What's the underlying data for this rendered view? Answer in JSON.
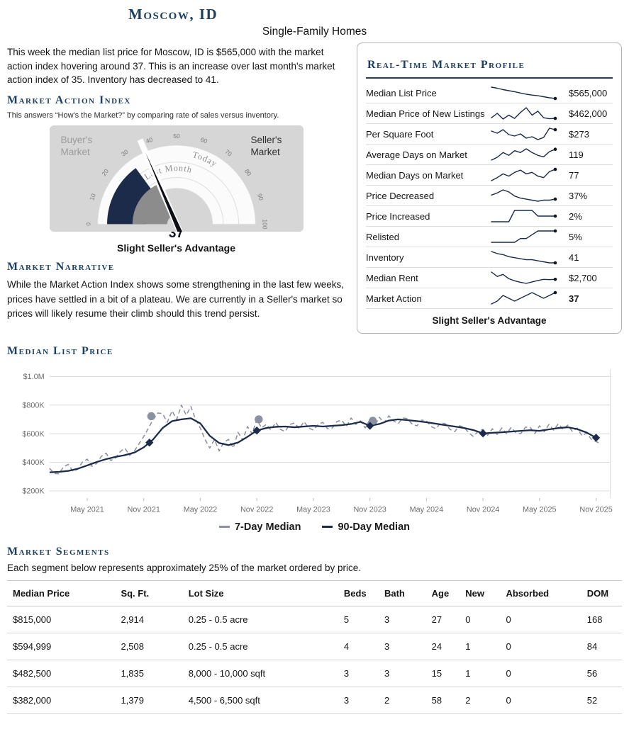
{
  "colors": {
    "navy": "#1c2b4a",
    "heading_blue": "#1d3f63",
    "gray_series": "#8b91a0"
  },
  "page": {
    "title": "Moscow, ID",
    "subtitle": "Single-Family Homes",
    "intro": "This week the median list price for Moscow, ID is $565,000 with the market action index hovering around 37. This is an increase over last month's market action index of 35. Inventory has decreased to 41."
  },
  "market_action": {
    "heading": "Market Action Index",
    "description": "This answers “How's the Market?” by comparing rate of sales versus inventory."
  },
  "market_narrative": {
    "heading": "Market Narrative",
    "text": "While the Market Action Index shows some strengthening in the last few weeks, prices have settled in a bit of a plateau. We are currently in a Seller's market so prices will likely resume their climb should this trend persist."
  },
  "profile": {
    "heading": "Real-Time Market Profile",
    "rows": [
      {
        "label": "Median List Price",
        "value": "$565,000",
        "spark": [
          648,
          640,
          630,
          622,
          615,
          605,
          596,
          590,
          585,
          578,
          570,
          565
        ]
      },
      {
        "label": "Median Price of New Listings",
        "value": "$462,000",
        "spark": [
          470,
          520,
          455,
          500,
          462,
          530,
          585,
          500,
          545,
          470,
          458,
          462
        ]
      },
      {
        "label": "Per Square Foot",
        "value": "$273",
        "spark": [
          271,
          268,
          273,
          266,
          264,
          267,
          261,
          263,
          259,
          262,
          275,
          273
        ]
      },
      {
        "label": "Average Days on Market",
        "value": "119",
        "spark": [
          96,
          102,
          112,
          106,
          116,
          112,
          120,
          112,
          106,
          103,
          114,
          119
        ]
      },
      {
        "label": "Median Days on Market",
        "value": "77",
        "spark": [
          62,
          66,
          71,
          68,
          73,
          76,
          71,
          73,
          68,
          66,
          74,
          77
        ]
      },
      {
        "label": "Price Decreased",
        "value": "37%",
        "spark": [
          41,
          43,
          46,
          44,
          40,
          38,
          37,
          36,
          35,
          36,
          36,
          37
        ]
      },
      {
        "label": "Price Increased",
        "value": "2%",
        "spark": [
          1,
          1,
          1,
          1,
          3,
          3,
          3,
          3,
          2,
          2,
          2,
          2
        ]
      },
      {
        "label": "Relisted",
        "value": "5%",
        "spark": [
          2,
          2,
          2,
          2,
          2,
          3,
          3,
          4,
          5,
          5,
          5,
          5
        ]
      },
      {
        "label": "Inventory",
        "value": "41",
        "spark": [
          52,
          50,
          49,
          47,
          46,
          45,
          44,
          44,
          43,
          42,
          41,
          41
        ]
      },
      {
        "label": "Median Rent",
        "value": "$2,700",
        "spark": [
          2950,
          2800,
          2870,
          2720,
          2650,
          2600,
          2560,
          2610,
          2660,
          2700,
          2690,
          2700
        ]
      },
      {
        "label": "Market Action",
        "value": "37",
        "value_bold": true,
        "spark": [
          33,
          34,
          36,
          35,
          34,
          35,
          36,
          37,
          36,
          35,
          36,
          37
        ]
      }
    ],
    "footer": "Slight Seller's Advantage"
  },
  "segments": {
    "heading": "Market Segments",
    "description": "Each segment below represents approximately 25% of the market ordered by price.",
    "columns": [
      "Median Price",
      "Sq. Ft.",
      "Lot Size",
      "Beds",
      "Bath",
      "Age",
      "New",
      "Absorbed",
      "DOM"
    ],
    "rows": [
      [
        "$815,000",
        "2,914",
        "0.25 - 0.5 acre",
        "5",
        "3",
        "27",
        "0",
        "0",
        "168"
      ],
      [
        "$594,999",
        "2,508",
        "0.25 - 0.5 acre",
        "4",
        "3",
        "24",
        "1",
        "0",
        "84"
      ],
      [
        "$482,500",
        "1,835",
        "8,000 - 10,000 sqft",
        "3",
        "3",
        "15",
        "1",
        "0",
        "56"
      ],
      [
        "$382,000",
        "1,379",
        "4,500 - 6,500 sqft",
        "3",
        "2",
        "58",
        "2",
        "0",
        "52"
      ]
    ]
  },
  "chart_data": [
    {
      "id": "market-action-gauge",
      "type": "gauge",
      "value": 37,
      "value_label": "37",
      "last_month_value": 35,
      "min": 0,
      "max": 100,
      "ticks": [
        0,
        10,
        20,
        30,
        40,
        50,
        60,
        70,
        80,
        90,
        100
      ],
      "buyers_label": "Buyer's Market",
      "sellers_label": "Seller's Market",
      "arc_labels": {
        "last_month": "Last Month",
        "today": "Today"
      },
      "caption": "Slight Seller's Advantage"
    },
    {
      "id": "median-list-price",
      "type": "line",
      "title": "Median List Price",
      "x_start": "Jan 2021",
      "x_unit": "month",
      "x_tick_positions": [
        4,
        10,
        16,
        22,
        28,
        34,
        40,
        46,
        52,
        58
      ],
      "x_tick_labels": [
        "May 2021",
        "Nov 2021",
        "May 2022",
        "Nov 2022",
        "May 2023",
        "Nov 2023",
        "May 2024",
        "Nov 2024",
        "May 2025",
        "Nov 2025"
      ],
      "y_ticks": [
        200,
        400,
        600,
        800,
        1000
      ],
      "y_tick_labels": [
        "$200K",
        "$400K",
        "$600K",
        "$800K",
        "$1.0M"
      ],
      "y_range": [
        150,
        1050
      ],
      "y_unit": "thousand USD",
      "grid": true,
      "legend_position": "bottom",
      "series": [
        {
          "name": "7-Day Median",
          "style": "dashed",
          "color": "#8b91a0",
          "x_step": 0.5,
          "values": [
            358,
            322,
            320,
            370,
            385,
            335,
            353,
            403,
            422,
            372,
            392,
            442,
            463,
            413,
            430,
            475,
            498,
            448,
            480,
            530,
            580,
            640,
            700,
            745,
            740,
            680,
            760,
            700,
            800,
            730,
            790,
            700,
            640,
            560,
            500,
            560,
            480,
            540,
            560,
            500,
            610,
            555,
            650,
            600,
            700,
            640,
            665,
            625,
            680,
            630,
            615,
            665,
            675,
            635,
            685,
            640,
            625,
            665,
            680,
            635,
            640,
            685,
            695,
            650,
            710,
            665,
            690,
            640,
            700,
            655,
            715,
            675,
            725,
            690,
            670,
            710,
            705,
            665,
            655,
            695,
            690,
            650,
            635,
            675,
            670,
            630,
            615,
            655,
            645,
            605,
            580,
            620,
            630,
            590,
            635,
            595,
            640,
            600,
            645,
            605,
            600,
            645,
            645,
            600,
            655,
            615,
            665,
            625,
            670,
            630,
            660,
            615,
            640,
            585,
            605,
            560,
            545,
            530
          ]
        },
        {
          "name": "90-Day Median",
          "style": "solid",
          "color": "#1c2b4a",
          "x_step": 1,
          "values": [
            330,
            333,
            340,
            355,
            378,
            402,
            422,
            438,
            450,
            468,
            505,
            560,
            640,
            688,
            700,
            708,
            672,
            585,
            535,
            520,
            538,
            578,
            622,
            640,
            648,
            650,
            645,
            650,
            655,
            650,
            655,
            660,
            668,
            683,
            655,
            668,
            692,
            700,
            695,
            688,
            680,
            670,
            660,
            650,
            640,
            625,
            602,
            606,
            610,
            615,
            620,
            624,
            620,
            630,
            640,
            645,
            632,
            608,
            572
          ]
        }
      ],
      "markers": {
        "diamonds": [
          {
            "x": 10.6,
            "y": 538
          },
          {
            "x": 22,
            "y": 622
          },
          {
            "x": 34,
            "y": 655
          },
          {
            "x": 46,
            "y": 602
          },
          {
            "x": 58,
            "y": 572
          }
        ],
        "circles": [
          {
            "x": 10.8,
            "y": 722
          },
          {
            "x": 22.2,
            "y": 700
          },
          {
            "x": 34.3,
            "y": 690
          }
        ]
      }
    }
  ]
}
